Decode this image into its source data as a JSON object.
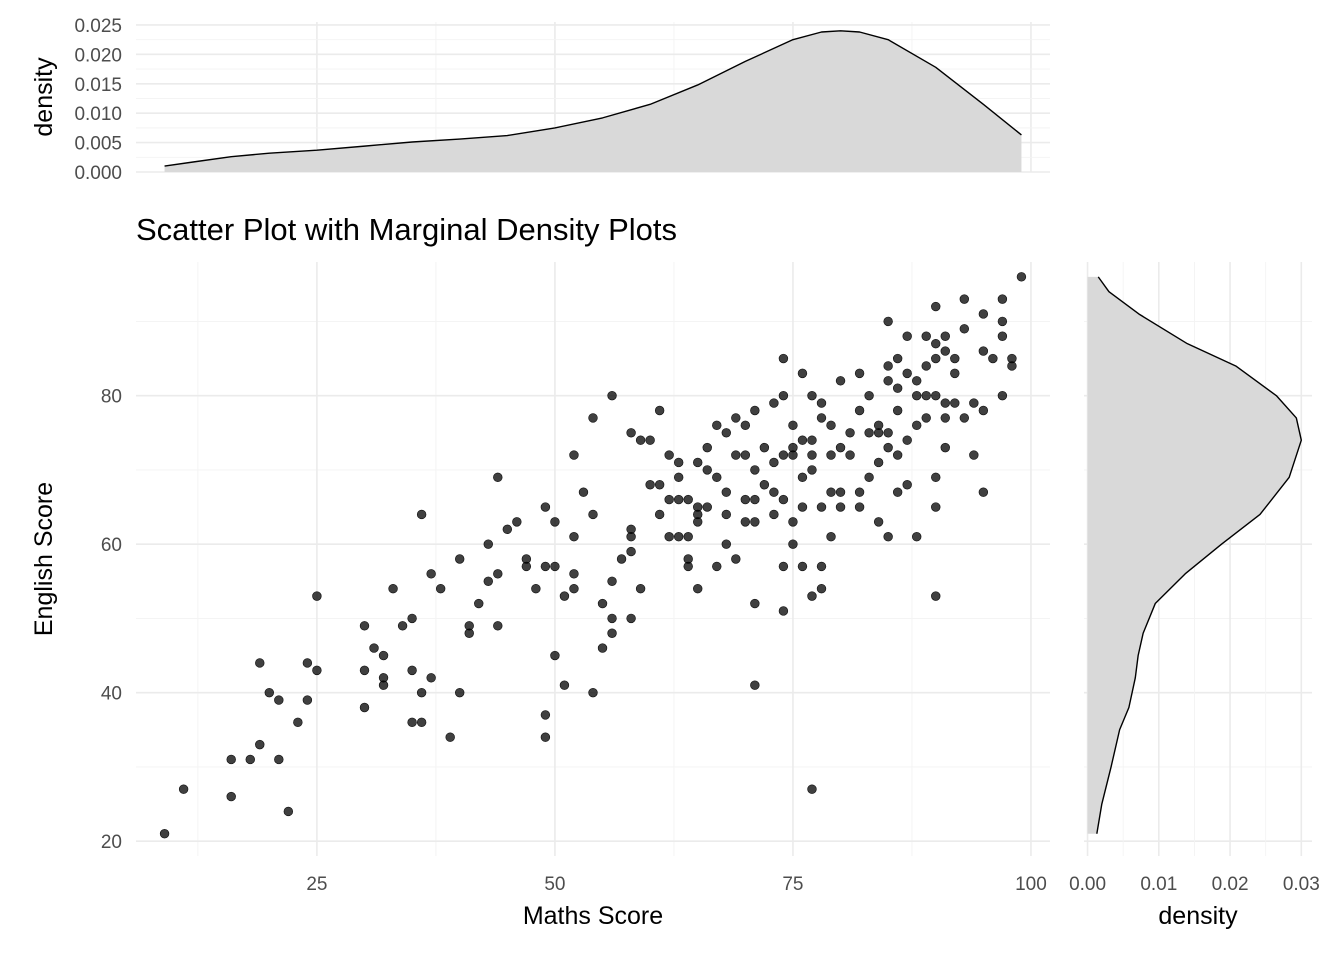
{
  "chart_data": [
    {
      "type": "scatter",
      "panel": "main",
      "title": "Scatter Plot with Marginal Density Plots",
      "xlabel": "Maths Score",
      "ylabel": "English Score",
      "xlim": [
        6,
        102
      ],
      "ylim": [
        18,
        98
      ],
      "xticks": [
        25,
        50,
        75,
        100
      ],
      "xtick_labels": [
        "25",
        "50",
        "75",
        "100"
      ],
      "yticks": [
        20,
        40,
        60,
        80
      ],
      "ytick_labels": [
        "20",
        "40",
        "60",
        "80"
      ],
      "grid": true,
      "points": [
        [
          9,
          21
        ],
        [
          11,
          27
        ],
        [
          16,
          31
        ],
        [
          16,
          26
        ],
        [
          18,
          31
        ],
        [
          19,
          33
        ],
        [
          19,
          44
        ],
        [
          20,
          40
        ],
        [
          21,
          39
        ],
        [
          21,
          31
        ],
        [
          22,
          24
        ],
        [
          23,
          36
        ],
        [
          24,
          39
        ],
        [
          24,
          44
        ],
        [
          25,
          43
        ],
        [
          25,
          53
        ],
        [
          30,
          38
        ],
        [
          30,
          43
        ],
        [
          30,
          49
        ],
        [
          31,
          46
        ],
        [
          32,
          45
        ],
        [
          32,
          42
        ],
        [
          32,
          41
        ],
        [
          33,
          54
        ],
        [
          34,
          49
        ],
        [
          35,
          50
        ],
        [
          35,
          43
        ],
        [
          35,
          36
        ],
        [
          36,
          36
        ],
        [
          36,
          64
        ],
        [
          36,
          40
        ],
        [
          37,
          42
        ],
        [
          37,
          56
        ],
        [
          38,
          54
        ],
        [
          39,
          34
        ],
        [
          40,
          40
        ],
        [
          40,
          58
        ],
        [
          41,
          49
        ],
        [
          41,
          48
        ],
        [
          42,
          52
        ],
        [
          43,
          60
        ],
        [
          43,
          55
        ],
        [
          44,
          56
        ],
        [
          44,
          49
        ],
        [
          44,
          69
        ],
        [
          45,
          62
        ],
        [
          46,
          63
        ],
        [
          47,
          57
        ],
        [
          47,
          58
        ],
        [
          48,
          54
        ],
        [
          49,
          65
        ],
        [
          49,
          57
        ],
        [
          49,
          37
        ],
        [
          49,
          34
        ],
        [
          50,
          57
        ],
        [
          50,
          63
        ],
        [
          50,
          45
        ],
        [
          51,
          41
        ],
        [
          51,
          53
        ],
        [
          52,
          54
        ],
        [
          52,
          56
        ],
        [
          52,
          61
        ],
        [
          52,
          72
        ],
        [
          53,
          67
        ],
        [
          54,
          40
        ],
        [
          54,
          64
        ],
        [
          54,
          77
        ],
        [
          55,
          46
        ],
        [
          55,
          52
        ],
        [
          56,
          50
        ],
        [
          56,
          55
        ],
        [
          56,
          80
        ],
        [
          56,
          48
        ],
        [
          57,
          58
        ],
        [
          58,
          59
        ],
        [
          58,
          62
        ],
        [
          58,
          61
        ],
        [
          58,
          50
        ],
        [
          59,
          54
        ],
        [
          58,
          75
        ],
        [
          59,
          74
        ],
        [
          60,
          68
        ],
        [
          60,
          74
        ],
        [
          61,
          64
        ],
        [
          61,
          68
        ],
        [
          61,
          78
        ],
        [
          62,
          66
        ],
        [
          62,
          72
        ],
        [
          62,
          61
        ],
        [
          63,
          69
        ],
        [
          63,
          71
        ],
        [
          63,
          66
        ],
        [
          63,
          61
        ],
        [
          64,
          57
        ],
        [
          64,
          66
        ],
        [
          64,
          61
        ],
        [
          64,
          58
        ],
        [
          65,
          65
        ],
        [
          65,
          63
        ],
        [
          65,
          54
        ],
        [
          65,
          64
        ],
        [
          65,
          71
        ],
        [
          66,
          65
        ],
        [
          66,
          70
        ],
        [
          66,
          73
        ],
        [
          67,
          69
        ],
        [
          67,
          76
        ],
        [
          67,
          57
        ],
        [
          68,
          60
        ],
        [
          68,
          67
        ],
        [
          68,
          64
        ],
        [
          68,
          75
        ],
        [
          69,
          77
        ],
        [
          69,
          58
        ],
        [
          69,
          72
        ],
        [
          70,
          76
        ],
        [
          70,
          66
        ],
        [
          70,
          63
        ],
        [
          70,
          72
        ],
        [
          71,
          63
        ],
        [
          71,
          70
        ],
        [
          71,
          52
        ],
        [
          71,
          41
        ],
        [
          71,
          66
        ],
        [
          71,
          78
        ],
        [
          72,
          73
        ],
        [
          72,
          68
        ],
        [
          73,
          67
        ],
        [
          73,
          71
        ],
        [
          73,
          64
        ],
        [
          73,
          79
        ],
        [
          74,
          57
        ],
        [
          74,
          51
        ],
        [
          74,
          66
        ],
        [
          74,
          72
        ],
        [
          74,
          85
        ],
        [
          74,
          80
        ],
        [
          75,
          72
        ],
        [
          75,
          60
        ],
        [
          75,
          76
        ],
        [
          75,
          63
        ],
        [
          75,
          73
        ],
        [
          76,
          65
        ],
        [
          76,
          69
        ],
        [
          76,
          83
        ],
        [
          76,
          57
        ],
        [
          76,
          74
        ],
        [
          77,
          74
        ],
        [
          77,
          53
        ],
        [
          77,
          70
        ],
        [
          77,
          80
        ],
        [
          77,
          27
        ],
        [
          77,
          72
        ],
        [
          78,
          77
        ],
        [
          78,
          57
        ],
        [
          78,
          54
        ],
        [
          78,
          65
        ],
        [
          78,
          79
        ],
        [
          79,
          72
        ],
        [
          79,
          61
        ],
        [
          79,
          76
        ],
        [
          79,
          67
        ],
        [
          80,
          82
        ],
        [
          80,
          65
        ],
        [
          80,
          67
        ],
        [
          80,
          73
        ],
        [
          81,
          75
        ],
        [
          81,
          72
        ],
        [
          82,
          65
        ],
        [
          82,
          67
        ],
        [
          82,
          78
        ],
        [
          82,
          83
        ],
        [
          83,
          75
        ],
        [
          83,
          69
        ],
        [
          83,
          80
        ],
        [
          84,
          71
        ],
        [
          84,
          75
        ],
        [
          84,
          63
        ],
        [
          84,
          76
        ],
        [
          85,
          82
        ],
        [
          85,
          75
        ],
        [
          85,
          84
        ],
        [
          85,
          90
        ],
        [
          85,
          73
        ],
        [
          85,
          61
        ],
        [
          86,
          72
        ],
        [
          86,
          85
        ],
        [
          86,
          67
        ],
        [
          86,
          81
        ],
        [
          87,
          74
        ],
        [
          87,
          88
        ],
        [
          87,
          83
        ],
        [
          87,
          68
        ],
        [
          88,
          76
        ],
        [
          88,
          80
        ],
        [
          88,
          61
        ],
        [
          89,
          77
        ],
        [
          89,
          88
        ],
        [
          89,
          80
        ],
        [
          89,
          84
        ],
        [
          90,
          87
        ],
        [
          90,
          92
        ],
        [
          90,
          65
        ],
        [
          90,
          53
        ],
        [
          90,
          69
        ],
        [
          90,
          80
        ],
        [
          91,
          86
        ],
        [
          91,
          88
        ],
        [
          91,
          79
        ],
        [
          91,
          73
        ],
        [
          91,
          77
        ],
        [
          92,
          83
        ],
        [
          92,
          85
        ],
        [
          92,
          79
        ],
        [
          93,
          93
        ],
        [
          93,
          77
        ],
        [
          93,
          89
        ],
        [
          94,
          79
        ],
        [
          94,
          72
        ],
        [
          95,
          91
        ],
        [
          95,
          86
        ],
        [
          95,
          67
        ],
        [
          95,
          78
        ],
        [
          96,
          85
        ],
        [
          97,
          93
        ],
        [
          97,
          90
        ],
        [
          97,
          88
        ],
        [
          97,
          80
        ],
        [
          98,
          84
        ],
        [
          98,
          85
        ],
        [
          99,
          96
        ],
        [
          86,
          78
        ],
        [
          88,
          82
        ],
        [
          90,
          85
        ]
      ]
    },
    {
      "type": "area",
      "panel": "top-marginal",
      "ylabel": "density",
      "xlim": [
        6,
        102
      ],
      "ylim": [
        0,
        0.0255
      ],
      "yticks": [
        0.0,
        0.005,
        0.01,
        0.015,
        0.02,
        0.025
      ],
      "ytick_labels": [
        "0.000",
        "0.005",
        "0.010",
        "0.015",
        "0.020",
        "0.025"
      ],
      "grid": true,
      "x": [
        9,
        12,
        16,
        20,
        25,
        30,
        35,
        40,
        45,
        50,
        55,
        60,
        65,
        70,
        75,
        78,
        80,
        82,
        85,
        90,
        95,
        99
      ],
      "y": [
        0.001,
        0.0017,
        0.0026,
        0.0032,
        0.0037,
        0.0044,
        0.0051,
        0.0056,
        0.0062,
        0.0075,
        0.0092,
        0.0115,
        0.0148,
        0.0188,
        0.0225,
        0.0238,
        0.024,
        0.0238,
        0.0225,
        0.0178,
        0.0115,
        0.0063
      ]
    },
    {
      "type": "area",
      "panel": "right-marginal",
      "xlabel": "density",
      "xlim": [
        -0.0005,
        0.0315
      ],
      "ylim": [
        18,
        98
      ],
      "xticks": [
        0.0,
        0.01,
        0.02,
        0.03
      ],
      "xtick_labels": [
        "0.00",
        "0.01",
        "0.02",
        "0.03"
      ],
      "grid": true,
      "x": [
        0.0013,
        0.002,
        0.0033,
        0.0045,
        0.0058,
        0.0067,
        0.0071,
        0.0078,
        0.0095,
        0.0137,
        0.0188,
        0.0242,
        0.0283,
        0.03,
        0.0293,
        0.0265,
        0.0208,
        0.014,
        0.0072,
        0.003,
        0.0015
      ],
      "y": [
        21,
        25,
        30,
        35,
        38,
        42,
        45,
        48,
        52,
        56,
        60,
        64,
        69,
        74,
        77,
        80,
        84,
        87,
        91,
        94,
        96
      ]
    }
  ]
}
